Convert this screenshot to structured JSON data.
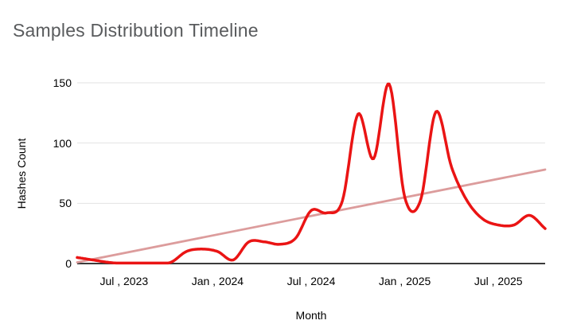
{
  "chart": {
    "title": "Samples Distribution Timeline",
    "x_axis_title": "Month",
    "y_axis_title": "Hashes Count"
  },
  "chart_data": {
    "type": "line",
    "title": "Samples Distribution Timeline",
    "xlabel": "Month",
    "ylabel": "Hashes Count",
    "ylim": [
      0,
      150
    ],
    "grid": true,
    "legend": "none",
    "x": [
      "Apr 2023",
      "May 2023",
      "Jun 2023",
      "Jul 2023",
      "Aug 2023",
      "Sep 2023",
      "Oct 2023",
      "Nov 2023",
      "Dec 2023",
      "Jan 2024",
      "Feb 2024",
      "Mar 2024",
      "Apr 2024",
      "May 2024",
      "Jun 2024",
      "Jul 2024",
      "Aug 2024",
      "Sep 2024",
      "Oct 2024",
      "Nov 2024",
      "Dec 2024",
      "Jan 2025",
      "Feb 2025",
      "Mar 2025",
      "Apr 2025",
      "May 2025",
      "Jun 2025",
      "Jul 2025",
      "Aug 2025",
      "Sep 2025",
      "Oct 2025"
    ],
    "series": [
      {
        "name": "Hashes Count",
        "color": "#ea1414",
        "smooth": true,
        "values": [
          5,
          3,
          1,
          0,
          0,
          0,
          1,
          10,
          12,
          10,
          3,
          18,
          18,
          16,
          21,
          44,
          42,
          52,
          124,
          87,
          149,
          55,
          52,
          126,
          80,
          52,
          37,
          32,
          32,
          40,
          29
        ]
      },
      {
        "name": "trendline",
        "color": "#dc9c9c",
        "shape": "linear",
        "start_value": 1,
        "end_value": 78
      }
    ],
    "y_ticks": [
      0,
      50,
      100,
      150
    ],
    "x_ticks": [
      {
        "label": "Jul , 2023",
        "index": 3
      },
      {
        "label": "Jan , 2024",
        "index": 9
      },
      {
        "label": "Jul , 2024",
        "index": 15
      },
      {
        "label": "Jan , 2025",
        "index": 21
      },
      {
        "label": "Jul , 2025",
        "index": 27
      }
    ],
    "colors": {
      "title_text": "#595b5d",
      "axis_text": "#000000",
      "gridline": "#e2e2e2",
      "axis_line": "#3a3a3a",
      "background": "#ffffff"
    }
  }
}
